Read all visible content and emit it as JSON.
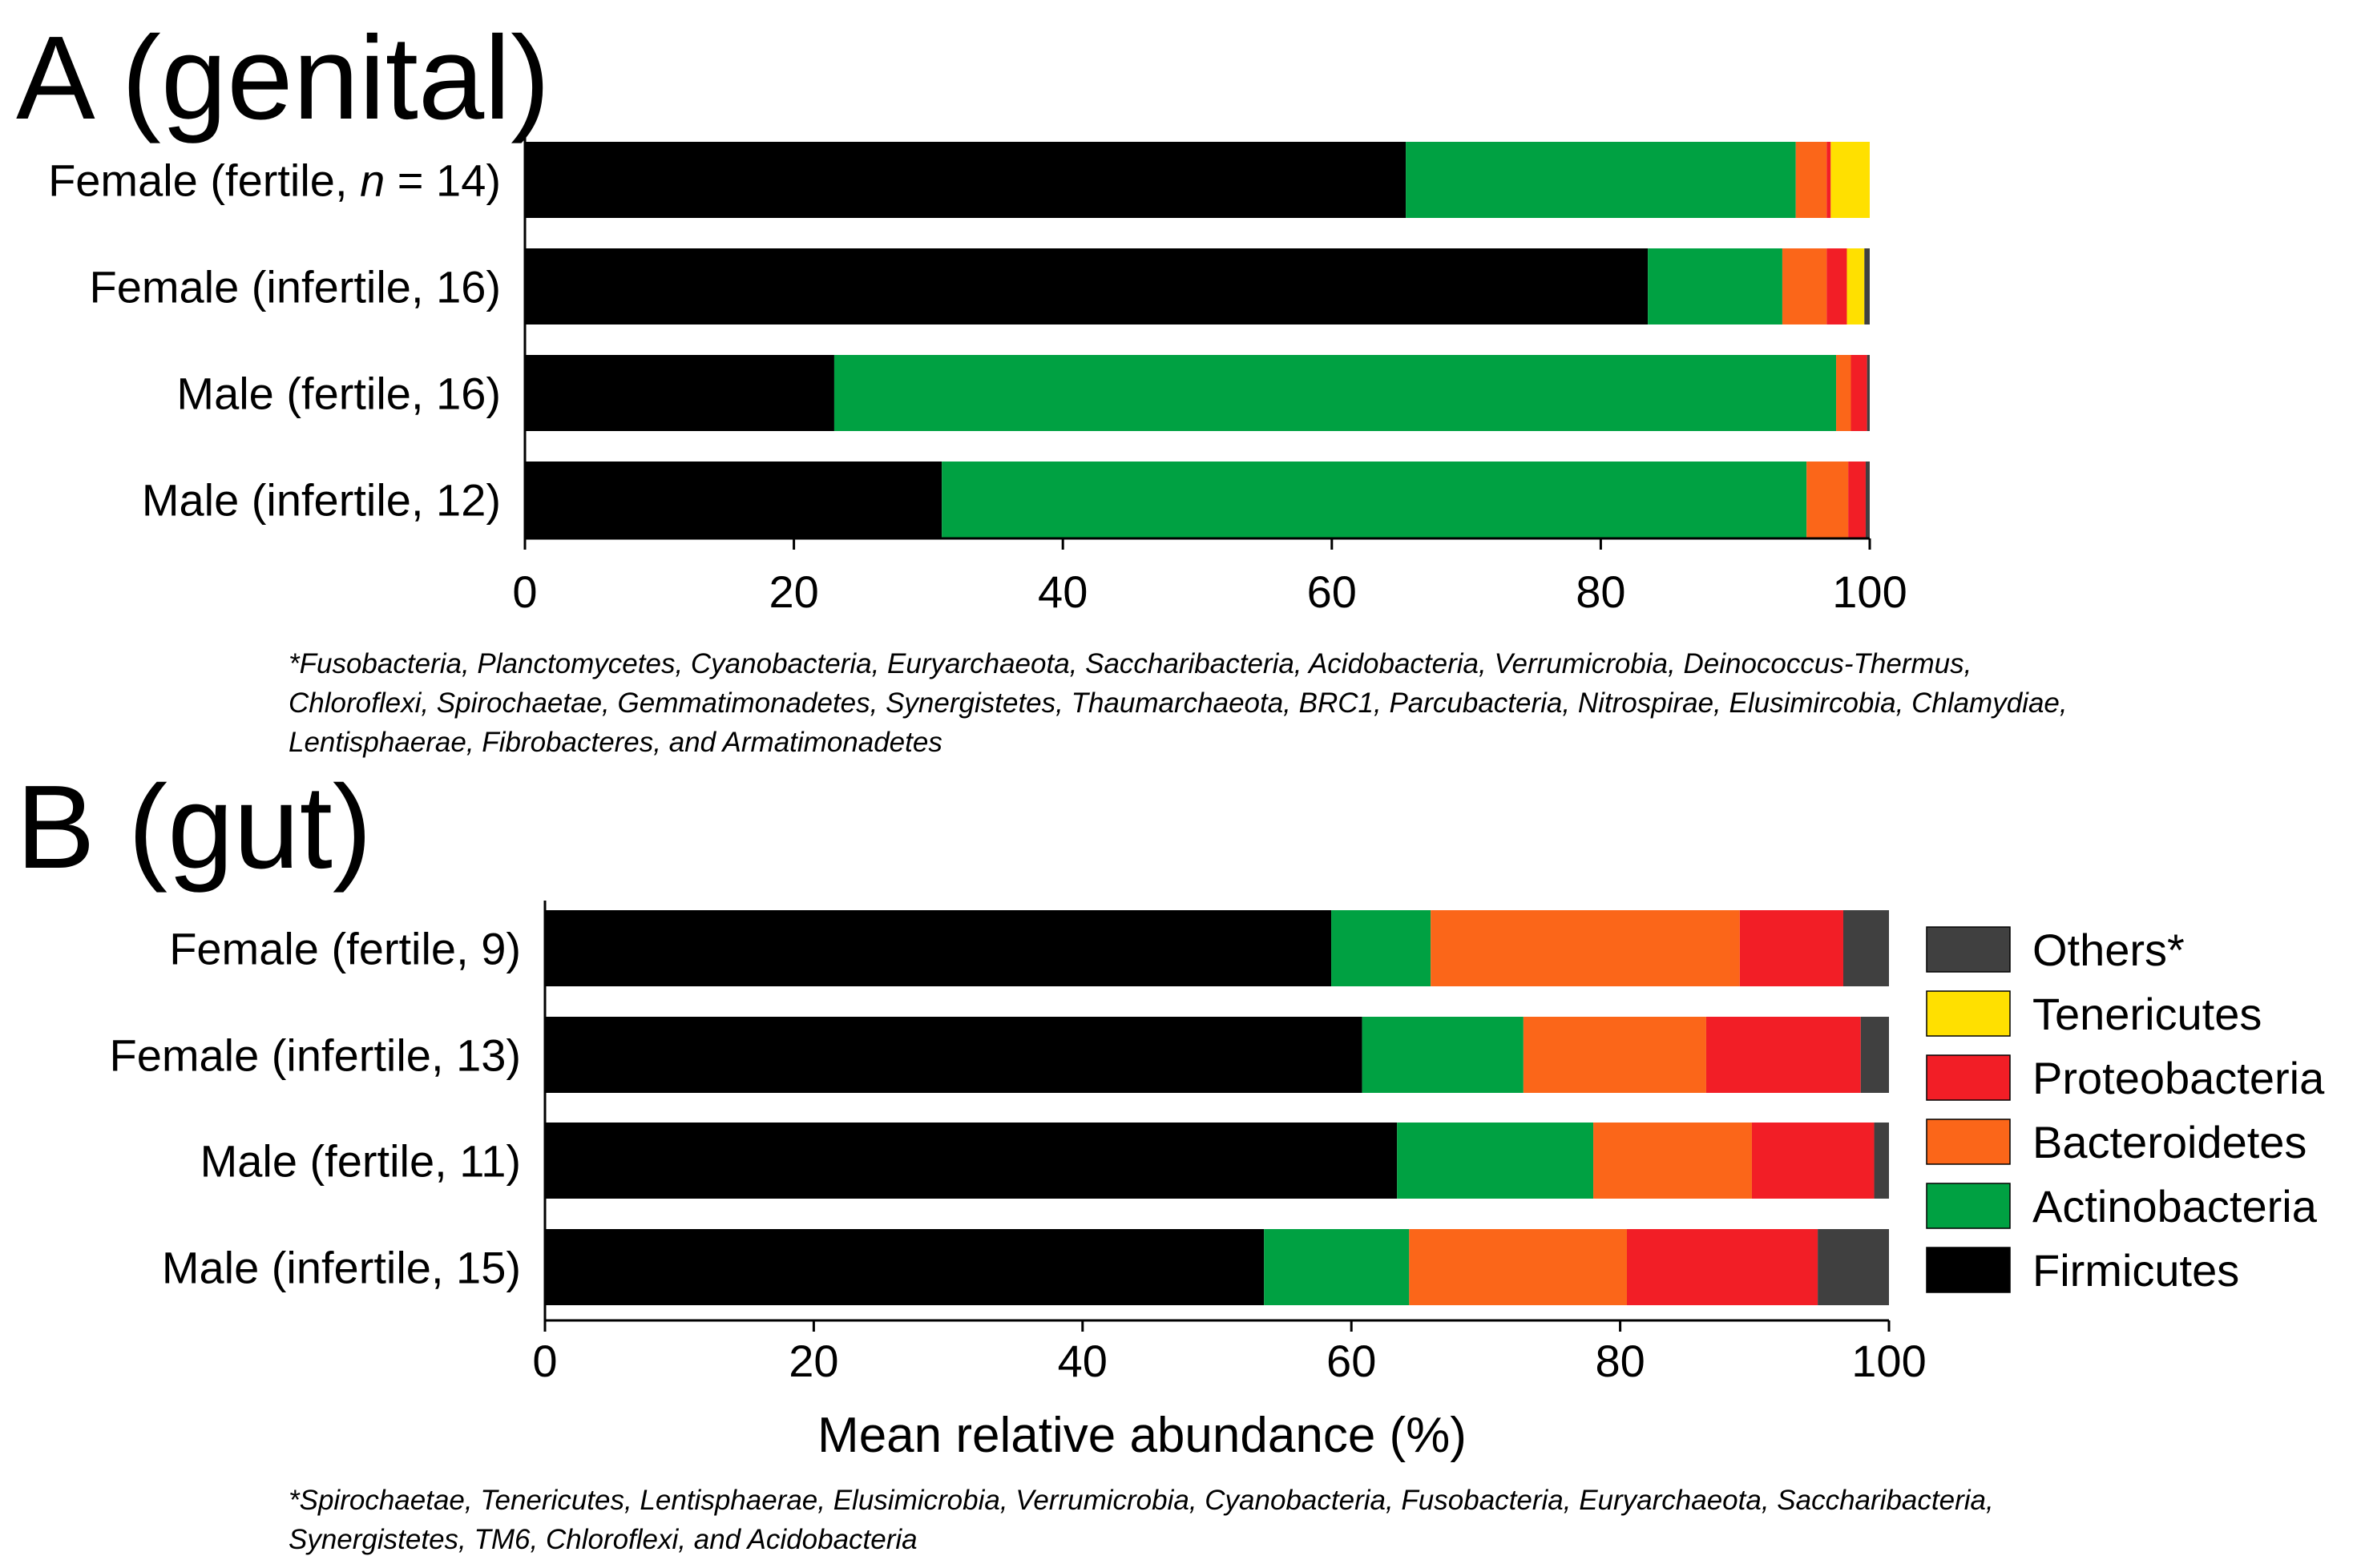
{
  "chart_data": [
    {
      "type": "bar",
      "orientation": "horizontal",
      "stacked": true,
      "title": "A (genital)",
      "categories": [
        "Female (fertile, n = 14)",
        "Female (infertile, 16)",
        "Male (fertile, 16)",
        "Male (infertile, 12)"
      ],
      "series": [
        {
          "name": "Firmicutes",
          "values": [
            65.5,
            83.5,
            23,
            31
          ]
        },
        {
          "name": "Actinobacteria",
          "values": [
            29,
            10,
            74.5,
            64.3
          ]
        },
        {
          "name": "Bacteroidetes",
          "values": [
            2.3,
            3.3,
            1.1,
            3.1
          ]
        },
        {
          "name": "Proteobacteria",
          "values": [
            0.3,
            1.5,
            1.2,
            1.3
          ]
        },
        {
          "name": "Tenericutes",
          "values": [
            2.9,
            1.3,
            0,
            0
          ]
        },
        {
          "name": "Others*",
          "values": [
            0,
            0.4,
            0.2,
            0.3
          ]
        }
      ],
      "xlim": [
        0,
        100
      ],
      "xticks": [
        "0",
        "20",
        "40",
        "60",
        "80",
        "100"
      ],
      "xlabel": "",
      "footnote": [
        "*Fusobacteria, Planctomycetes, Cyanobacteria, Euryarchaeota, Saccharibacteria, Acidobacteria, Verrumicrobia, Deinococcus-Thermus,",
        "Chloroflexi, Spirochaetae, Gemmatimonadetes, Synergistetes, Thaumarchaeota, BRC1, Parcubacteria, Nitrospirae, Elusimircobia, Chlamydiae,",
        "Lentisphaerae, Fibrobacteres, and Armatimonadetes"
      ]
    },
    {
      "type": "bar",
      "orientation": "horizontal",
      "stacked": true,
      "title": "B (gut)",
      "categories": [
        "Female (fertile, 9)",
        "Female (infertile, 13)",
        "Male (fertile, 11)",
        "Male (infertile, 15)"
      ],
      "series": [
        {
          "name": "Firmicutes",
          "values": [
            58.5,
            60.8,
            63.4,
            53.5
          ]
        },
        {
          "name": "Actinobacteria",
          "values": [
            7.4,
            12,
            14.6,
            10.8
          ]
        },
        {
          "name": "Bacteroidetes",
          "values": [
            23,
            13.6,
            11.8,
            16.2
          ]
        },
        {
          "name": "Proteobacteria",
          "values": [
            7.7,
            11.5,
            9.1,
            14.2
          ]
        },
        {
          "name": "Tenericutes",
          "values": [
            0,
            0,
            0,
            0
          ]
        },
        {
          "name": "Others*",
          "values": [
            3.4,
            2.1,
            1.1,
            5.3
          ]
        }
      ],
      "xlim": [
        0,
        100
      ],
      "xticks": [
        "0",
        "20",
        "40",
        "60",
        "80",
        "100"
      ],
      "xlabel": "Mean relative abundance (%)",
      "footnote": [
        "*Spirochaetae, Tenericutes,  Lentisphaerae, Elusimicrobia, Verrumicrobia, Cyanobacteria, Fusobacteria, Euryarchaeota, Saccharibacteria,",
        "Synergistetes, TM6, Chloroflexi, and Acidobacteria"
      ]
    }
  ],
  "legend": [
    {
      "name": "Others*",
      "color": "#404040"
    },
    {
      "name": "Tenericutes",
      "color": "#FFE000"
    },
    {
      "name": "Proteobacteria",
      "color": "#F21E26"
    },
    {
      "name": "Bacteroidetes",
      "color": "#FB6619"
    },
    {
      "name": "Actinobacteria",
      "color": "#00A142"
    },
    {
      "name": "Firmicutes",
      "color": "#000000"
    }
  ],
  "stack_order": [
    "Firmicutes",
    "Actinobacteria",
    "Bacteroidetes",
    "Proteobacteria",
    "Tenericutes",
    "Others*"
  ]
}
